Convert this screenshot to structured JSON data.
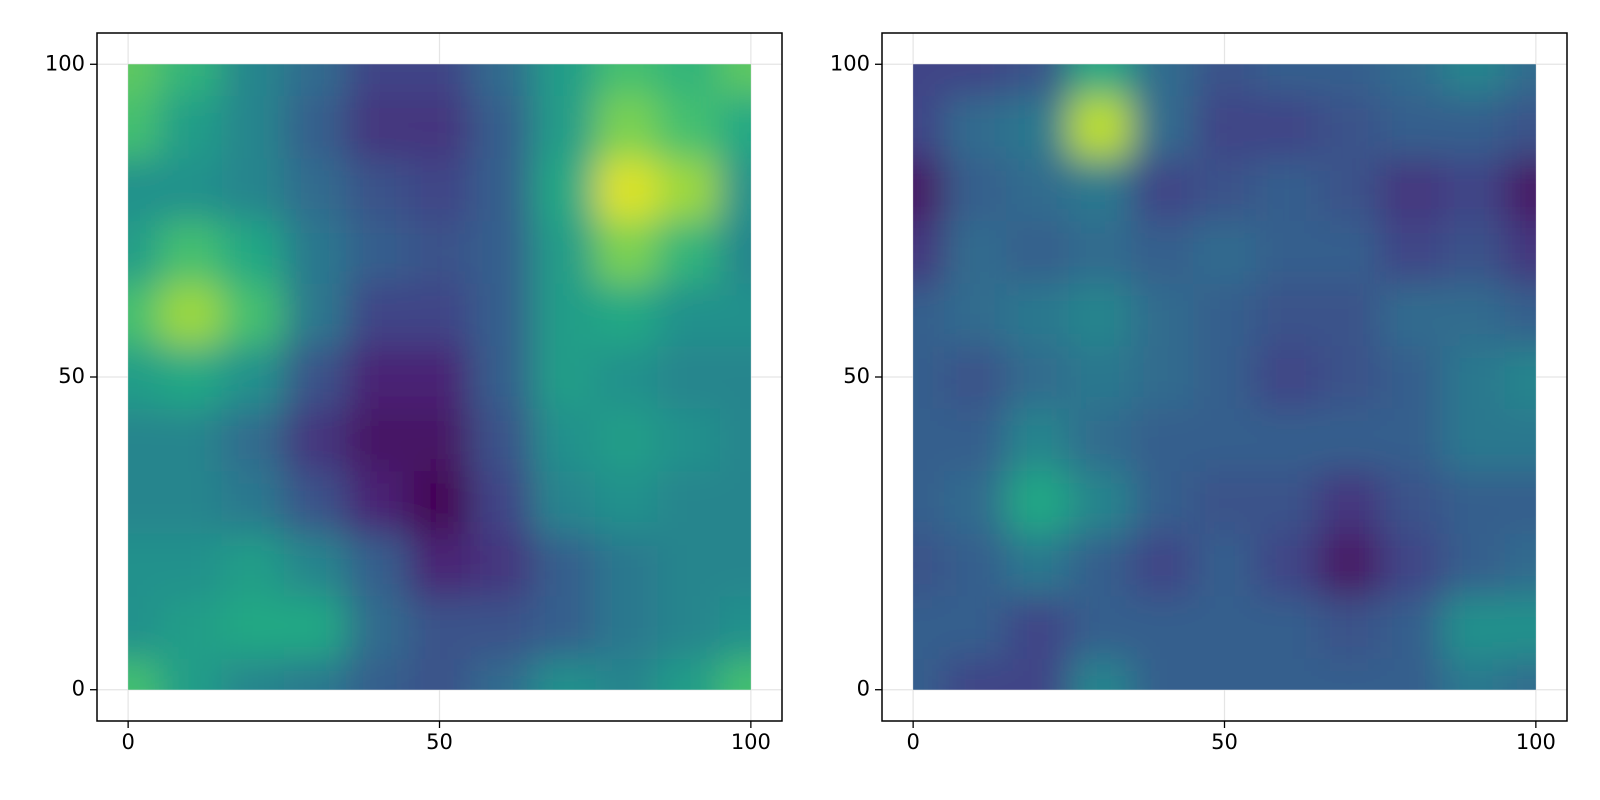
{
  "chart_data": [
    {
      "type": "heatmap",
      "colormap": "viridis",
      "grid": true,
      "x": [
        0,
        10,
        20,
        30,
        40,
        50,
        60,
        70,
        80,
        90,
        100
      ],
      "y": [
        0,
        10,
        20,
        30,
        40,
        50,
        60,
        70,
        80,
        90,
        100
      ],
      "z": [
        [
          0.7,
          0.55,
          0.45,
          0.4,
          0.3,
          0.25,
          0.35,
          0.5,
          0.45,
          0.55,
          0.7
        ],
        [
          0.5,
          0.55,
          0.6,
          0.6,
          0.35,
          0.25,
          0.25,
          0.3,
          0.4,
          0.45,
          0.5
        ],
        [
          0.5,
          0.5,
          0.55,
          0.45,
          0.3,
          0.1,
          0.15,
          0.3,
          0.4,
          0.45,
          0.45
        ],
        [
          0.45,
          0.45,
          0.4,
          0.25,
          0.1,
          0.0,
          0.2,
          0.45,
          0.5,
          0.45,
          0.45
        ],
        [
          0.45,
          0.45,
          0.35,
          0.15,
          0.05,
          0.05,
          0.25,
          0.5,
          0.55,
          0.5,
          0.45
        ],
        [
          0.55,
          0.6,
          0.5,
          0.25,
          0.1,
          0.1,
          0.3,
          0.55,
          0.5,
          0.45,
          0.45
        ],
        [
          0.7,
          0.85,
          0.7,
          0.4,
          0.2,
          0.2,
          0.3,
          0.55,
          0.6,
          0.5,
          0.5
        ],
        [
          0.55,
          0.7,
          0.6,
          0.4,
          0.3,
          0.25,
          0.3,
          0.55,
          0.8,
          0.65,
          0.45
        ],
        [
          0.5,
          0.5,
          0.45,
          0.35,
          0.25,
          0.2,
          0.3,
          0.6,
          0.95,
          0.85,
          0.5
        ],
        [
          0.7,
          0.55,
          0.45,
          0.3,
          0.15,
          0.15,
          0.3,
          0.55,
          0.8,
          0.7,
          0.6
        ],
        [
          0.75,
          0.65,
          0.45,
          0.35,
          0.2,
          0.2,
          0.35,
          0.55,
          0.7,
          0.65,
          0.75
        ]
      ],
      "xlim": [
        -5,
        105
      ],
      "ylim": [
        -5,
        105
      ],
      "xticks": [
        0,
        50,
        100
      ],
      "yticks": [
        0,
        50,
        100
      ]
    },
    {
      "type": "heatmap",
      "colormap": "viridis",
      "grid": true,
      "x": [
        0,
        10,
        20,
        30,
        40,
        50,
        60,
        70,
        80,
        90,
        100
      ],
      "y": [
        0,
        10,
        20,
        30,
        40,
        50,
        60,
        70,
        80,
        90,
        100
      ],
      "z": [
        [
          0.3,
          0.2,
          0.2,
          0.45,
          0.3,
          0.3,
          0.3,
          0.3,
          0.3,
          0.4,
          0.35
        ],
        [
          0.3,
          0.3,
          0.2,
          0.3,
          0.3,
          0.3,
          0.3,
          0.25,
          0.3,
          0.5,
          0.5
        ],
        [
          0.25,
          0.3,
          0.4,
          0.3,
          0.2,
          0.3,
          0.2,
          0.05,
          0.2,
          0.3,
          0.35
        ],
        [
          0.3,
          0.35,
          0.6,
          0.45,
          0.3,
          0.25,
          0.25,
          0.15,
          0.25,
          0.3,
          0.3
        ],
        [
          0.3,
          0.3,
          0.45,
          0.35,
          0.3,
          0.3,
          0.3,
          0.3,
          0.3,
          0.4,
          0.4
        ],
        [
          0.3,
          0.25,
          0.35,
          0.4,
          0.35,
          0.3,
          0.2,
          0.25,
          0.3,
          0.4,
          0.45
        ],
        [
          0.3,
          0.35,
          0.4,
          0.45,
          0.35,
          0.3,
          0.25,
          0.25,
          0.35,
          0.35,
          0.3
        ],
        [
          0.15,
          0.35,
          0.3,
          0.35,
          0.3,
          0.35,
          0.3,
          0.3,
          0.2,
          0.25,
          0.15
        ],
        [
          0.05,
          0.3,
          0.35,
          0.4,
          0.2,
          0.25,
          0.3,
          0.25,
          0.15,
          0.2,
          0.05
        ],
        [
          0.2,
          0.35,
          0.4,
          0.9,
          0.35,
          0.2,
          0.2,
          0.25,
          0.3,
          0.3,
          0.25
        ],
        [
          0.2,
          0.2,
          0.25,
          0.6,
          0.35,
          0.25,
          0.3,
          0.3,
          0.35,
          0.45,
          0.35
        ]
      ],
      "xlim": [
        -5,
        105
      ],
      "ylim": [
        -5,
        105
      ],
      "xticks": [
        0,
        50,
        100
      ],
      "yticks": [
        0,
        50,
        100
      ]
    }
  ]
}
